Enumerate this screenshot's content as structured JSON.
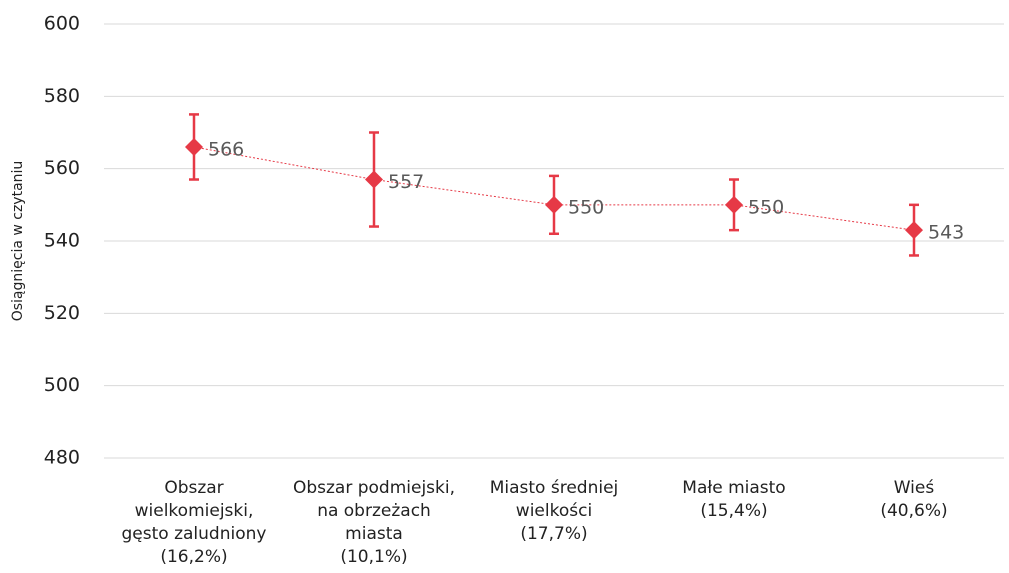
{
  "chart_data": {
    "type": "line",
    "ylabel": "Osiągnięcia w czytaniu",
    "categories": [
      "Obszar\nwielkomiejski,\ngęsto zaludniony\n(16,2%)",
      "Obszar podmiejski,\nna obrzeżach\nmiasta\n(10,1%)",
      "Miasto średniej\nwielkości\n(17,7%)",
      "Małe miasto\n(15,4%)",
      "Wieś\n(40,6%)"
    ],
    "values": [
      566,
      557,
      550,
      550,
      543
    ],
    "errors": [
      9,
      13,
      8,
      7,
      7
    ],
    "color": "#e63946",
    "ylim": [
      480,
      600
    ],
    "yticks": [
      480,
      500,
      520,
      540,
      560,
      580,
      600
    ],
    "grid": true
  }
}
